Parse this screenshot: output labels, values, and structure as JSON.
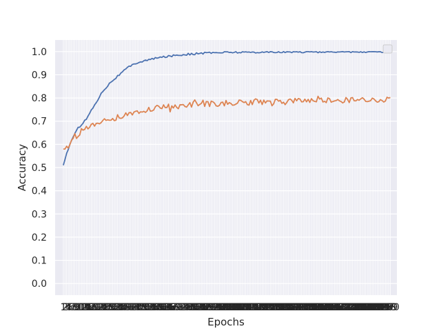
{
  "chart_data": {
    "type": "line",
    "xlabel": "Epochs",
    "ylabel": "Accuracy",
    "ylim": [
      -0.05,
      1.05
    ],
    "yticks": [
      0.0,
      0.1,
      0.2,
      0.3,
      0.4,
      0.5,
      0.6,
      0.7,
      0.8,
      0.9,
      1.0
    ],
    "ytick_labels": [
      "0.0",
      "0.1",
      "0.2",
      "0.3",
      "0.4",
      "0.5",
      "0.6",
      "0.7",
      "0.8",
      "0.9",
      "1.0"
    ],
    "xlim": [
      -4,
      204
    ],
    "x_start": 1,
    "x_end": 200,
    "x_tick_labels_overlapping": true,
    "grid": true,
    "legend": "top-right (empty)",
    "series": [
      {
        "color": "#4c72b0",
        "anchors": [
          [
            1,
            0.51
          ],
          [
            3,
            0.56
          ],
          [
            6,
            0.62
          ],
          [
            10,
            0.67
          ],
          [
            15,
            0.71
          ],
          [
            20,
            0.77
          ],
          [
            25,
            0.83
          ],
          [
            30,
            0.87
          ],
          [
            35,
            0.9
          ],
          [
            40,
            0.93
          ],
          [
            45,
            0.95
          ],
          [
            50,
            0.96
          ],
          [
            60,
            0.975
          ],
          [
            70,
            0.985
          ],
          [
            80,
            0.99
          ],
          [
            90,
            0.995
          ],
          [
            100,
            0.997
          ],
          [
            120,
            0.998
          ],
          [
            150,
            0.999
          ],
          [
            200,
            1.0
          ]
        ],
        "noise": 0.004
      },
      {
        "color": "#dd8452",
        "anchors": [
          [
            1,
            0.58
          ],
          [
            3,
            0.58
          ],
          [
            5,
            0.6
          ],
          [
            8,
            0.63
          ],
          [
            12,
            0.66
          ],
          [
            18,
            0.68
          ],
          [
            25,
            0.7
          ],
          [
            35,
            0.72
          ],
          [
            45,
            0.74
          ],
          [
            55,
            0.755
          ],
          [
            70,
            0.765
          ],
          [
            90,
            0.775
          ],
          [
            110,
            0.78
          ],
          [
            130,
            0.785
          ],
          [
            160,
            0.79
          ],
          [
            200,
            0.795
          ]
        ],
        "noise": 0.012
      }
    ]
  }
}
